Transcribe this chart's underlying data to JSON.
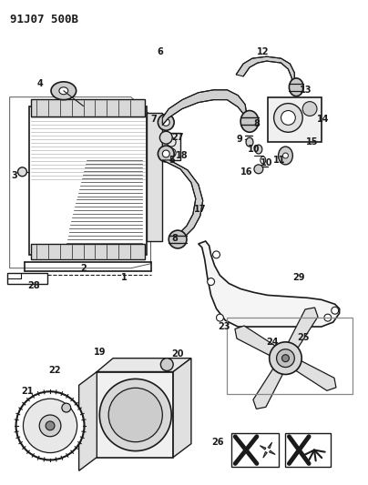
{
  "title": "91J07 500B",
  "bg_color": "#ffffff",
  "line_color": "#1a1a1a",
  "label_color": "#000000",
  "title_fontsize": 9,
  "label_fontsize": 7,
  "fig_width": 4.04,
  "fig_height": 5.33,
  "dpi": 100
}
